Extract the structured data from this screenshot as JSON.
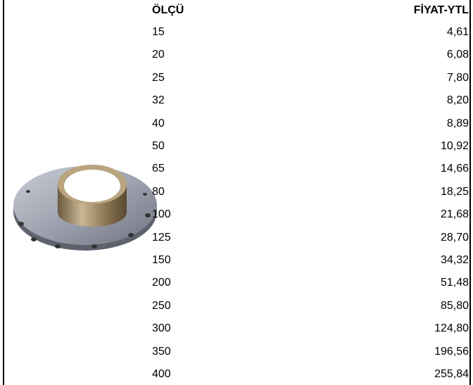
{
  "table": {
    "headers": [
      "ÖLÇÜ",
      "FİYAT-YTL"
    ],
    "rows": [
      [
        "15",
        "4,61"
      ],
      [
        "20",
        "6,08"
      ],
      [
        "25",
        "7,80"
      ],
      [
        "32",
        "8,20"
      ],
      [
        "40",
        "8,89"
      ],
      [
        "50",
        "10,92"
      ],
      [
        "65",
        "14,66"
      ],
      [
        "80",
        "18,25"
      ],
      [
        "100",
        "21,68"
      ],
      [
        "125",
        "28,70"
      ],
      [
        "150",
        "34,32"
      ],
      [
        "200",
        "51,48"
      ],
      [
        "250",
        "85,80"
      ],
      [
        "300",
        "124,80"
      ],
      [
        "350",
        "196,56"
      ],
      [
        "400",
        "255,84"
      ]
    ]
  }
}
